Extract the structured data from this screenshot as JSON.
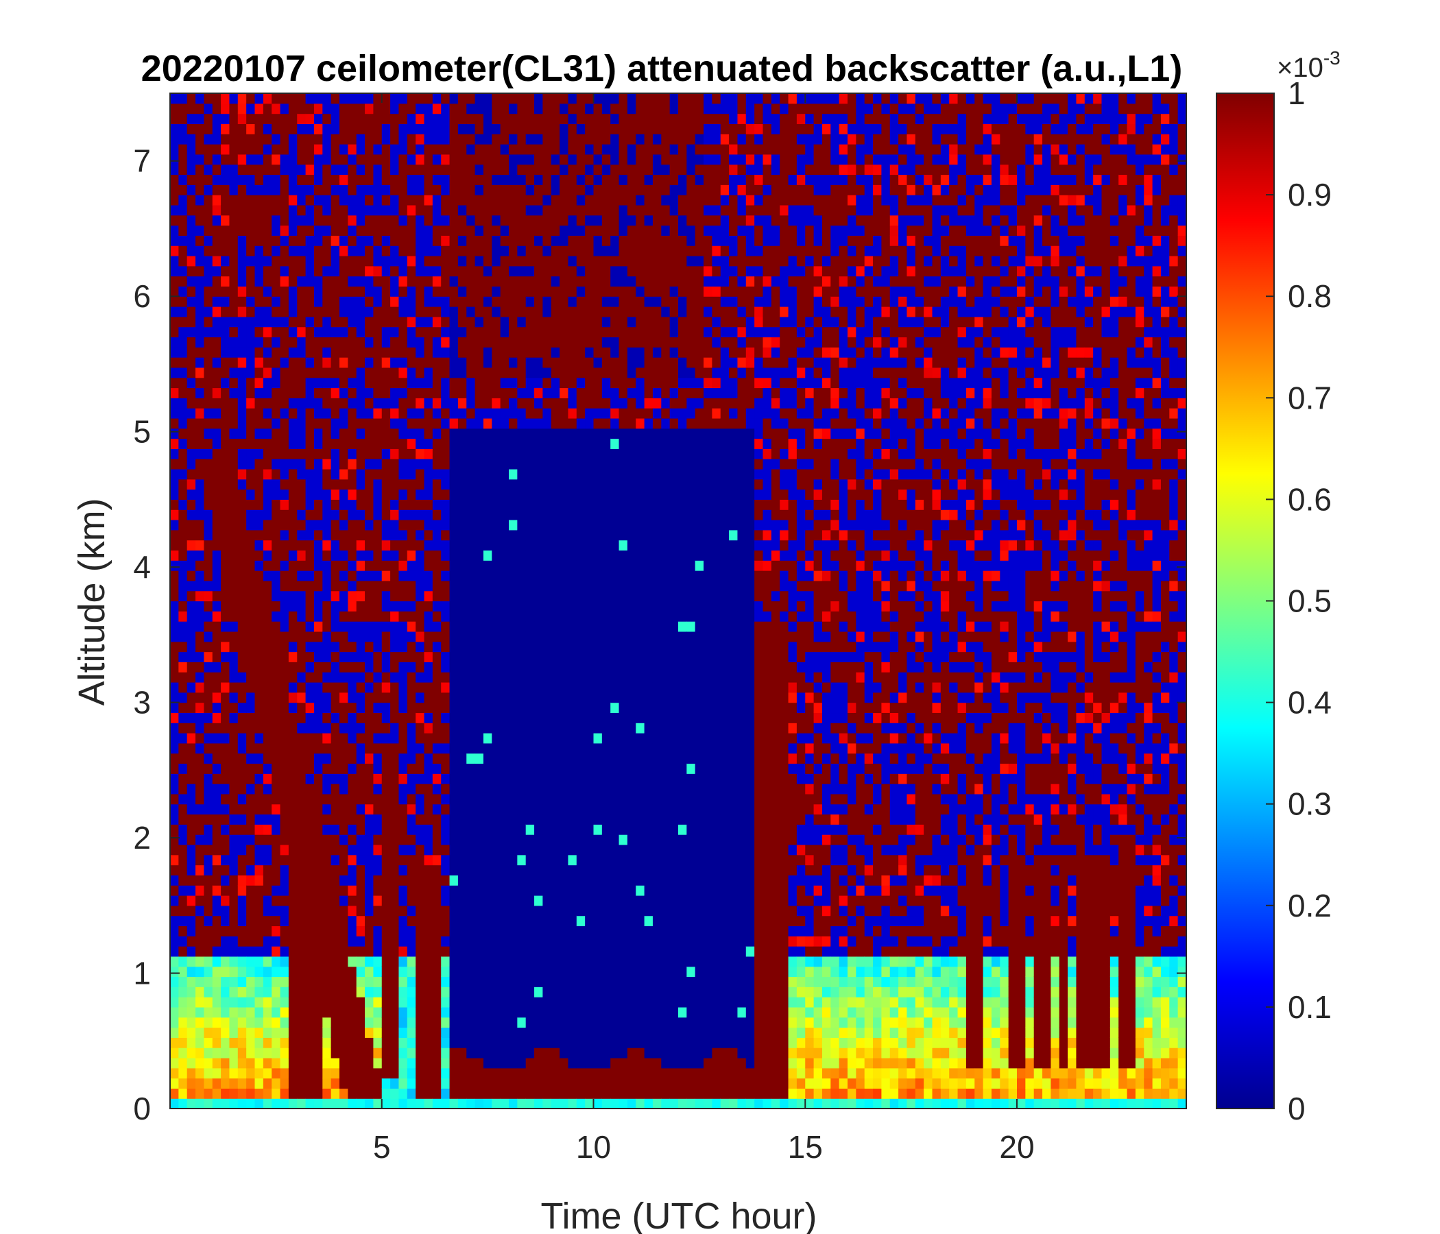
{
  "chart_data": {
    "type": "heatmap",
    "title": "20220107 ceilometer(CL31) attenuated backscatter (a.u.,L1)",
    "xlabel": "Time (UTC hour)",
    "ylabel": "Altitude (km)",
    "xlim": [
      0,
      24
    ],
    "ylim": [
      0,
      7.5
    ],
    "xticks": [
      "5",
      "10",
      "15",
      "20"
    ],
    "xtick_values": [
      5,
      10,
      15,
      20
    ],
    "yticks": [
      "0",
      "1",
      "2",
      "3",
      "4",
      "5",
      "6",
      "7"
    ],
    "ytick_values": [
      0,
      1,
      2,
      3,
      4,
      5,
      6,
      7
    ],
    "colorbar": {
      "colormap": "jet",
      "range": [
        0,
        0.001
      ],
      "exponent_base": "×10",
      "exponent_power": "-3",
      "ticks": [
        "0",
        "0.1",
        "0.2",
        "0.3",
        "0.4",
        "0.5",
        "0.6",
        "0.7",
        "0.8",
        "0.9",
        "1"
      ],
      "tick_values": [
        0,
        0.1,
        0.2,
        0.3,
        0.4,
        0.5,
        0.6,
        0.7,
        0.8,
        0.9,
        1
      ]
    },
    "grid": false,
    "colors": {
      "low": "#00008f",
      "high": "#800000",
      "axis": "#262626"
    }
  }
}
